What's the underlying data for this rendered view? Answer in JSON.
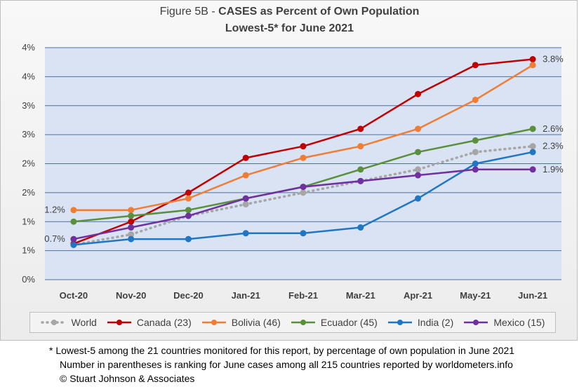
{
  "chart_data": {
    "type": "line",
    "title_prefix": "Figure 5B - ",
    "title_main": "CASES as Percent of Own Population",
    "subtitle": "Lowest-5* for June 2021",
    "categories": [
      "Oct-20",
      "Nov-20",
      "Dec-20",
      "Jan-21",
      "Feb-21",
      "Mar-21",
      "Apr-21",
      "May-21",
      "Jun-21"
    ],
    "y_tick_labels": [
      "0%",
      "1%",
      "1%",
      "2%",
      "2%",
      "3%",
      "3%",
      "4%",
      "4%"
    ],
    "ylim": [
      0,
      4.0
    ],
    "grid": true,
    "legend_position": "bottom",
    "series": [
      {
        "name": "World",
        "color": "#a6a6a6",
        "dashed": true,
        "values": [
          0.6,
          0.78,
          1.1,
          1.3,
          1.5,
          1.7,
          1.9,
          2.2,
          2.3
        ]
      },
      {
        "name": "Canada (23)",
        "color": "#c00000",
        "dashed": false,
        "values": [
          0.62,
          1.0,
          1.5,
          2.1,
          2.3,
          2.6,
          3.2,
          3.7,
          3.8
        ]
      },
      {
        "name": "Bolivia (46)",
        "color": "#f07d34",
        "dashed": false,
        "values": [
          1.2,
          1.2,
          1.4,
          1.8,
          2.1,
          2.3,
          2.6,
          3.1,
          3.7
        ]
      },
      {
        "name": "Ecuador (45)",
        "color": "#5a8f3c",
        "dashed": false,
        "values": [
          1.0,
          1.1,
          1.2,
          1.4,
          1.6,
          1.9,
          2.2,
          2.4,
          2.6
        ]
      },
      {
        "name": "India (2)",
        "color": "#1f77c4",
        "dashed": false,
        "values": [
          0.6,
          0.7,
          0.7,
          0.8,
          0.8,
          0.9,
          1.4,
          2.0,
          2.2
        ]
      },
      {
        "name": "Mexico (15)",
        "color": "#7030a0",
        "dashed": false,
        "values": [
          0.7,
          0.9,
          1.1,
          1.4,
          1.6,
          1.7,
          1.8,
          1.9,
          1.9
        ]
      }
    ],
    "data_labels": [
      {
        "text": "1.2%",
        "series": "Bolivia (46)",
        "side": "left",
        "index": 0
      },
      {
        "text": "0.7%",
        "series": "Mexico (15)",
        "side": "left",
        "index": 0
      },
      {
        "text": "3.8%",
        "series": "Canada (23)",
        "side": "right",
        "index": 8
      },
      {
        "text": "2.6%",
        "series": "Ecuador (45)",
        "side": "right",
        "index": 8
      },
      {
        "text": "2.3%",
        "series": "World",
        "side": "right",
        "index": 8
      },
      {
        "text": "1.9%",
        "series": "Mexico (15)",
        "side": "right",
        "index": 8
      }
    ]
  },
  "footnotes": {
    "line1": "* Lowest-5 among the 21 countries monitored for this report, by percentage of own population in June 2021",
    "line2": "Number in parentheses is ranking for June cases among all 215 countries reported by worldometers.info",
    "line3": "© Stuart Johnson & Associates"
  }
}
